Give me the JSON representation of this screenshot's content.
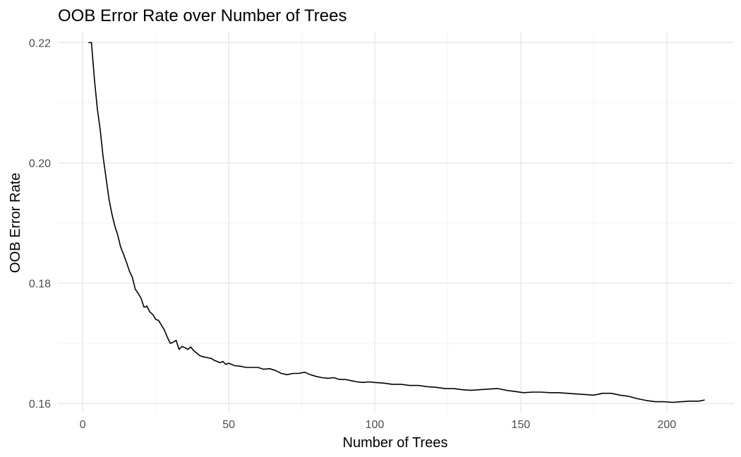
{
  "chart_data": {
    "type": "line",
    "title": "OOB Error Rate over Number of Trees",
    "xlabel": "Number of Trees",
    "ylabel": "OOB Error Rate",
    "xlim": [
      -8.5,
      223
    ],
    "ylim": [
      0.1585,
      0.2218
    ],
    "xticks": [
      0,
      50,
      100,
      150,
      200
    ],
    "xtick_labels": [
      "0",
      "50",
      "100",
      "150",
      "200"
    ],
    "yticks": [
      0.16,
      0.18,
      0.2,
      0.22
    ],
    "ytick_labels": [
      "0.16",
      "0.18",
      "0.20",
      "0.22"
    ],
    "xminor": [
      25,
      75,
      125,
      175
    ],
    "yminor": [
      0.17,
      0.19,
      0.21
    ],
    "grid": true,
    "legend": "none",
    "series": [
      {
        "color": "#000000",
        "x": [
          2,
          3,
          4,
          5,
          6,
          7,
          8,
          9,
          10,
          11,
          12,
          13,
          14,
          15,
          16,
          17,
          18,
          19,
          20,
          21,
          22,
          23,
          24,
          25,
          26,
          27,
          28,
          29,
          30,
          31,
          32,
          33,
          34,
          35,
          36,
          37,
          38,
          39,
          40,
          41,
          42,
          43,
          44,
          45,
          46,
          47,
          48,
          49,
          50,
          52,
          54,
          56,
          58,
          60,
          62,
          64,
          66,
          68,
          70,
          72,
          74,
          76,
          78,
          80,
          82,
          84,
          86,
          88,
          90,
          92,
          94,
          96,
          98,
          100,
          103,
          106,
          109,
          112,
          115,
          118,
          121,
          124,
          127,
          130,
          133,
          136,
          139,
          142,
          145,
          148,
          151,
          154,
          157,
          160,
          163,
          166,
          169,
          172,
          175,
          178,
          181,
          184,
          187,
          190,
          193,
          196,
          199,
          202,
          205,
          208,
          211,
          213
        ],
        "y": [
          0.22,
          0.22,
          0.214,
          0.209,
          0.2055,
          0.201,
          0.1975,
          0.194,
          0.1915,
          0.1895,
          0.188,
          0.186,
          0.1848,
          0.1835,
          0.182,
          0.181,
          0.179,
          0.1783,
          0.1775,
          0.176,
          0.1762,
          0.1752,
          0.1748,
          0.174,
          0.1738,
          0.173,
          0.1722,
          0.171,
          0.17,
          0.1702,
          0.1705,
          0.169,
          0.1695,
          0.1693,
          0.169,
          0.1694,
          0.1688,
          0.1684,
          0.168,
          0.1678,
          0.1677,
          0.1676,
          0.1675,
          0.1672,
          0.167,
          0.1668,
          0.167,
          0.1665,
          0.1667,
          0.1663,
          0.1662,
          0.166,
          0.166,
          0.166,
          0.1657,
          0.1658,
          0.1655,
          0.165,
          0.1648,
          0.165,
          0.165,
          0.1652,
          0.1648,
          0.1645,
          0.1643,
          0.1642,
          0.1643,
          0.164,
          0.164,
          0.1638,
          0.1636,
          0.1635,
          0.1636,
          0.1635,
          0.1634,
          0.1632,
          0.1632,
          0.163,
          0.163,
          0.1628,
          0.1627,
          0.1625,
          0.1625,
          0.1623,
          0.1622,
          0.1623,
          0.1624,
          0.1625,
          0.1622,
          0.162,
          0.1618,
          0.1619,
          0.1619,
          0.1618,
          0.1618,
          0.1617,
          0.1616,
          0.1615,
          0.1614,
          0.1617,
          0.1617,
          0.1614,
          0.1612,
          0.1608,
          0.1605,
          0.1603,
          0.1603,
          0.1602,
          0.1603,
          0.1604,
          0.1604,
          0.1606
        ]
      }
    ]
  }
}
